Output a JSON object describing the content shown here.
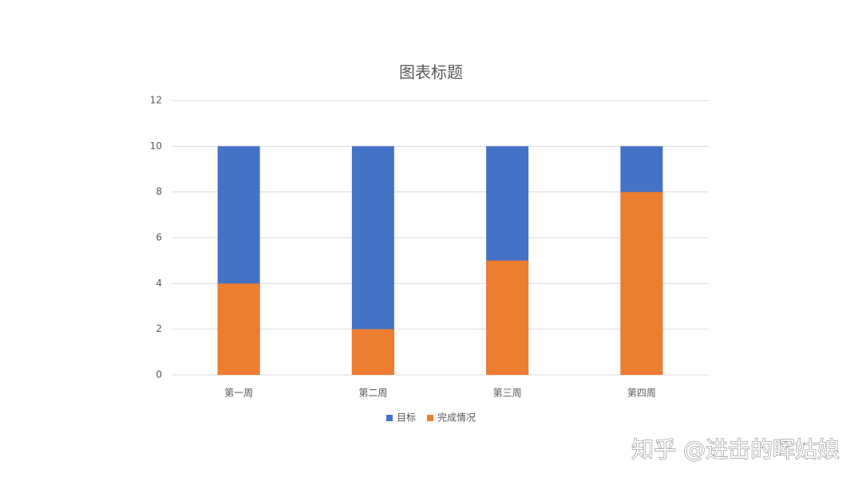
{
  "chart_data": {
    "type": "bar",
    "title": "图表标题",
    "categories": [
      "第一周",
      "第二周",
      "第三周",
      "第四周"
    ],
    "series": [
      {
        "name": "目标",
        "color": "#4472c4",
        "values": [
          10,
          10,
          10,
          10
        ]
      },
      {
        "name": "完成情况",
        "color": "#ed7d31",
        "values": [
          4,
          2,
          5,
          8
        ]
      }
    ],
    "overlap": true,
    "ylim": [
      0,
      12
    ],
    "yticks": [
      0,
      2,
      4,
      6,
      8,
      10,
      12
    ],
    "grid": true,
    "legend": "bottom"
  },
  "watermark": "知乎 @进击的晖姑娘"
}
